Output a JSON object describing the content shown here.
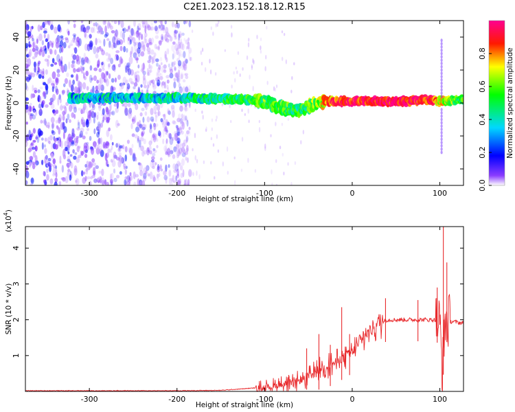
{
  "title": "C2E1.2023.152.18.12.R15",
  "chart_data": [
    {
      "type": "heatmap",
      "xlabel": "Height of straight line (km)",
      "ylabel": "Frequency (Hz)",
      "xlim": [
        -373,
        127
      ],
      "ylim": [
        -50,
        50
      ],
      "xticks": [
        -300,
        -200,
        -100,
        0,
        100
      ],
      "xtick_labels": [
        "-300",
        "-200",
        "-100",
        "0",
        "100"
      ],
      "yticks": [
        -40,
        -20,
        0,
        20,
        40
      ],
      "ytick_labels": [
        "-40",
        "-20",
        "0",
        "20",
        "40"
      ],
      "colorbar": {
        "label": "Normalized spectral amplitude",
        "range": [
          0,
          1
        ],
        "ticks": [
          0.0,
          0.2,
          0.4,
          0.6,
          0.8
        ],
        "tick_labels": [
          "0.0",
          "0.2",
          "0.4",
          "0.6",
          "0.8"
        ],
        "colors": [
          "#ffffff",
          "#6a00ff",
          "#0000ff",
          "#00e5ff",
          "#00ff00",
          "#ffff00",
          "#ff0000",
          "#ff00aa"
        ]
      },
      "centerline": {
        "x": [
          -320,
          -300,
          -250,
          -200,
          -150,
          -120,
          -100,
          -80,
          -60,
          -40,
          -20,
          0,
          50,
          90,
          100,
          127
        ],
        "freq": [
          3,
          3,
          3,
          3,
          2.5,
          2,
          1,
          -3,
          -5,
          0,
          1,
          1,
          1,
          2,
          1,
          2
        ],
        "amplitude": [
          0.35,
          0.35,
          0.35,
          0.4,
          0.45,
          0.5,
          0.55,
          0.55,
          0.5,
          0.6,
          0.85,
          0.9,
          0.95,
          0.9,
          0.7,
          0.5
        ]
      },
      "noise_region": {
        "x": [
          -373,
          -185
        ],
        "freq": [
          -50,
          50
        ],
        "amplitude": 0.15
      }
    },
    {
      "type": "line",
      "xlabel": "Height of straight line (km)",
      "ylabel": "SNR (10 * v/v)",
      "multiplier_label": "(x10",
      "multiplier_exp": "4",
      "multiplier_close": ")",
      "xlim": [
        -373,
        127
      ],
      "ylim": [
        0,
        4.6
      ],
      "xticks": [
        -300,
        -200,
        -100,
        0,
        100
      ],
      "xtick_labels": [
        "-300",
        "-200",
        "-100",
        "0",
        "100"
      ],
      "yticks": [
        1,
        2,
        3,
        4
      ],
      "ytick_labels": [
        "1",
        "2",
        "3",
        "4"
      ],
      "color": "#e8282b",
      "series": [
        {
          "x": [
            -373,
            -300,
            -200,
            -150,
            -120,
            -100,
            -90,
            -80,
            -70,
            -60,
            -50,
            -40,
            -30,
            -20,
            -10,
            0,
            10,
            20,
            30,
            40,
            60,
            80,
            90,
            95,
            100,
            103,
            106,
            110,
            115,
            127
          ],
          "y": [
            0.02,
            0.02,
            0.02,
            0.03,
            0.08,
            0.12,
            0.15,
            0.2,
            0.2,
            0.3,
            0.4,
            0.6,
            0.7,
            0.8,
            0.95,
            1.1,
            1.4,
            1.7,
            1.9,
            2.0,
            2.0,
            2.0,
            2.0,
            2.0,
            1.9,
            0.6,
            2.0,
            1.95,
            1.95,
            1.9
          ]
        }
      ],
      "spikes": [
        {
          "x": -52,
          "y": 1.2
        },
        {
          "x": -38,
          "y": 1.6
        },
        {
          "x": -25,
          "y": 1.3
        },
        {
          "x": -12,
          "y": 2.35
        },
        {
          "x": -3,
          "y": 1.6
        },
        {
          "x": 38,
          "y": 2.6
        },
        {
          "x": 75,
          "y": 2.55
        },
        {
          "x": 97,
          "y": 2.9
        },
        {
          "x": 104,
          "y": 4.6
        },
        {
          "x": 108,
          "y": 3.6
        }
      ]
    }
  ]
}
